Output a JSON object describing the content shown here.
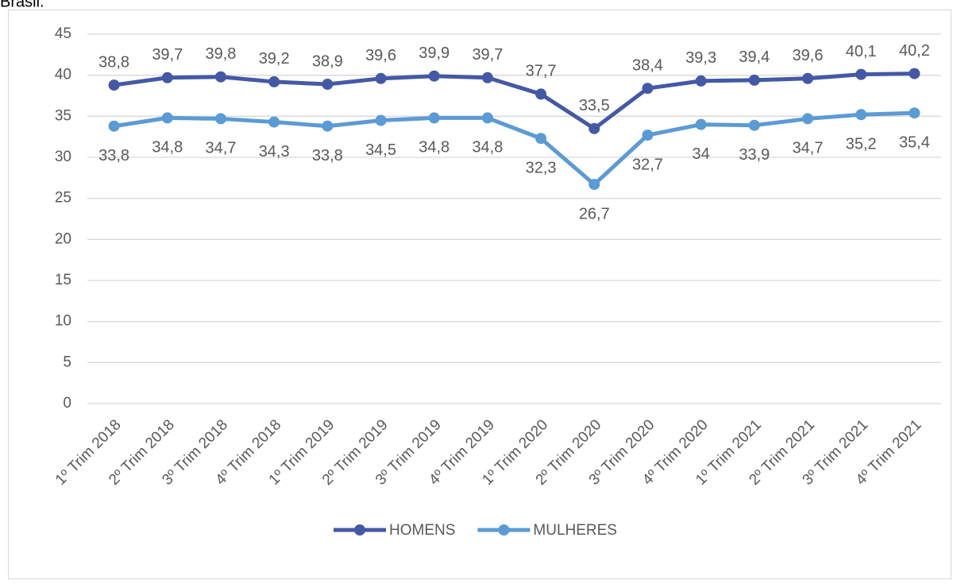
{
  "caption": "Brasil.",
  "chart_data": {
    "type": "line",
    "categories": [
      "1º Trim 2018",
      "2º Trim 2018",
      "3º Trim 2018",
      "4º Trim 2018",
      "1º Trim 2019",
      "2º Trim 2019",
      "3º Trim 2019",
      "4º Trim 2019",
      "1º Trim 2020",
      "2º Trim 2020",
      "3º Trim 2020",
      "4º Trim 2020",
      "1º Trim 2021",
      "2º Trim 2021",
      "3º Trim 2021",
      "4º Trim 2021"
    ],
    "series": [
      {
        "name": "HOMENS",
        "color": "#4459a6",
        "values": [
          38.8,
          39.7,
          39.8,
          39.2,
          38.9,
          39.6,
          39.9,
          39.7,
          37.7,
          33.5,
          38.4,
          39.3,
          39.4,
          39.6,
          40.1,
          40.2
        ],
        "value_labels": [
          "38,8",
          "39,7",
          "39,8",
          "39,2",
          "38,9",
          "39,6",
          "39,9",
          "39,7",
          "37,7",
          "33,5",
          "38,4",
          "39,3",
          "39,4",
          "39,6",
          "40,1",
          "40,2"
        ]
      },
      {
        "name": "MULHERES",
        "color": "#5b9bd5",
        "values": [
          33.8,
          34.8,
          34.7,
          34.3,
          33.8,
          34.5,
          34.8,
          34.8,
          32.3,
          26.7,
          32.7,
          34,
          33.9,
          34.7,
          35.2,
          35.4
        ],
        "value_labels": [
          "33,8",
          "34,8",
          "34,7",
          "34,3",
          "33,8",
          "34,5",
          "34,8",
          "34,8",
          "32,3",
          "26,7",
          "32,7",
          "34",
          "33,9",
          "34,7",
          "35,2",
          "35,4"
        ]
      }
    ],
    "ylim": [
      0,
      45
    ],
    "yticks": [
      0,
      5,
      10,
      15,
      20,
      25,
      30,
      35,
      40,
      45
    ],
    "grid": true,
    "legend": "bottom"
  }
}
